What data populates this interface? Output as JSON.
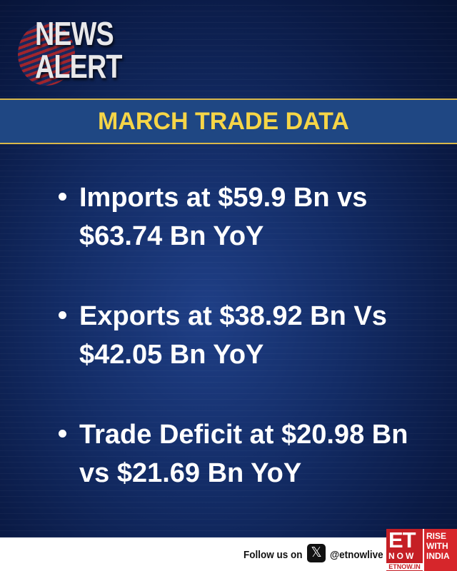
{
  "logo": {
    "line1": "NEWS",
    "line2": "ALERT"
  },
  "banner": {
    "title": "MARCH TRADE DATA"
  },
  "bullets": [
    {
      "text": "Imports at $59.9 Bn vs $63.74 Bn YoY"
    },
    {
      "text": "Exports at $38.92 Bn Vs $42.05 Bn YoY"
    },
    {
      "text": "Trade Deficit at $20.98 Bn vs $21.69 Bn YoY"
    }
  ],
  "footer": {
    "follow_label": "Follow us on",
    "social_icon": "x-icon",
    "handle": "@etnowlive",
    "brand": {
      "main": "ET",
      "sub": "NOW",
      "site": "ETNOW.IN",
      "tagline": "RISE WITH INDIA"
    }
  },
  "colors": {
    "title": "#f5d547",
    "banner": "#1f4783",
    "background": "#132c66",
    "brand_red": "#d6262b"
  }
}
